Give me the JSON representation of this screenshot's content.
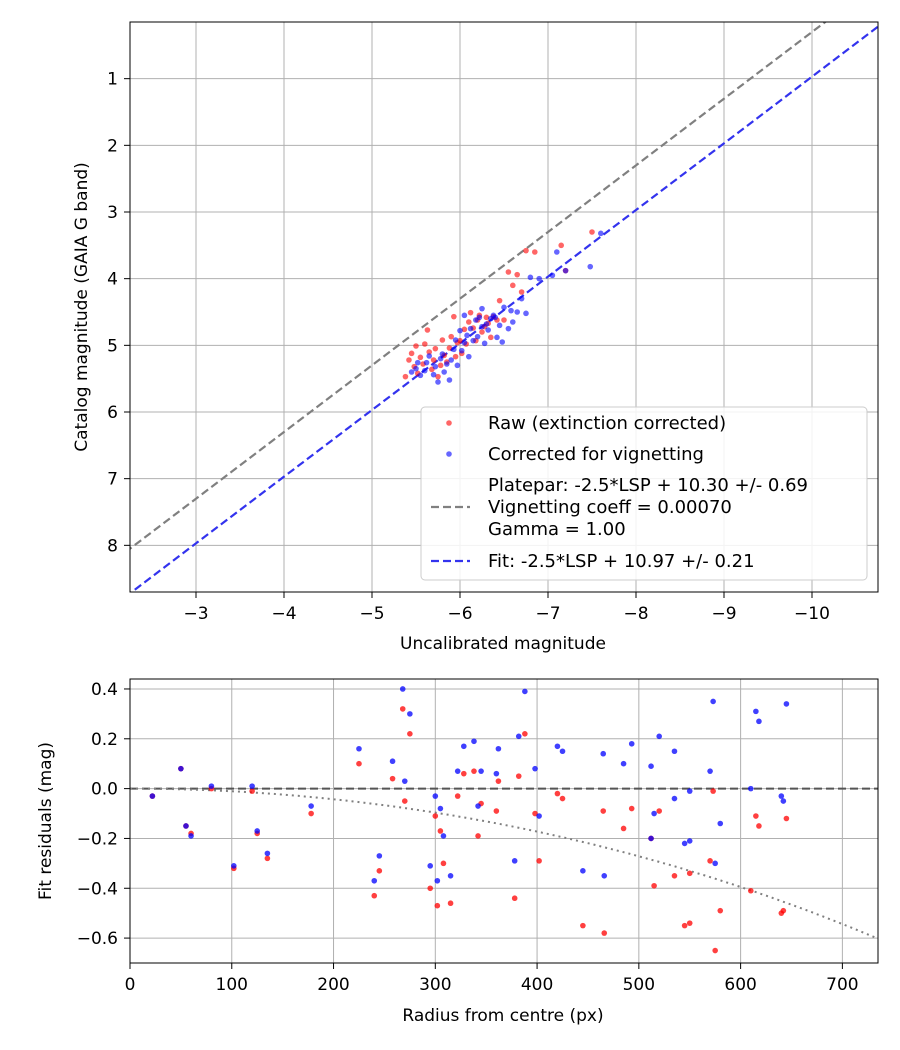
{
  "chart_data": [
    {
      "type": "scatter",
      "xlabel": "Uncalibrated magnitude",
      "ylabel": "Catalog magnitude (GAIA G band)",
      "xlim": [
        -2.25,
        -10.75
      ],
      "ylim": [
        8.7,
        0.15
      ],
      "x_inverted": true,
      "y_inverted": true,
      "xticks": [
        -3,
        -4,
        -5,
        -6,
        -7,
        -8,
        -9,
        -10
      ],
      "xtick_labels": [
        "−3",
        "−4",
        "−5",
        "−6",
        "−7",
        "−8",
        "−9",
        "−10"
      ],
      "yticks": [
        1,
        2,
        3,
        4,
        5,
        6,
        7,
        8
      ],
      "ytick_labels": [
        "1",
        "2",
        "3",
        "4",
        "5",
        "6",
        "7",
        "8"
      ],
      "grid": true,
      "legend_position": "lower-right",
      "legend": [
        {
          "kind": "point",
          "color": "#ff0000",
          "label_lines": [
            "Raw (extinction corrected)"
          ]
        },
        {
          "kind": "point",
          "color": "#0000ff",
          "label_lines": [
            "Corrected for vignetting"
          ]
        },
        {
          "kind": "dashed-line",
          "color": "#808080",
          "label_lines": [
            "Platepar: -2.5*LSP + 10.30 +/- 0.69",
            "Vignetting coeff = 0.00070",
            "Gamma = 1.00"
          ]
        },
        {
          "kind": "dashed-line",
          "color": "#3333ee",
          "label_lines": [
            "Fit: -2.5*LSP + 10.97 +/- 0.21"
          ]
        }
      ],
      "lines": [
        {
          "name": "Platepar",
          "slope": 1,
          "intercept": 10.3,
          "color": "#808080",
          "style": "dashed"
        },
        {
          "name": "Fit",
          "slope": 1,
          "intercept": 10.97,
          "color": "#3333ee",
          "style": "dashed"
        }
      ],
      "series": [
        {
          "name": "Raw (extinction corrected)",
          "color": "#ff0000",
          "points": [
            [
              -5.38,
              5.47
            ],
            [
              -5.42,
              5.22
            ],
            [
              -5.45,
              5.12
            ],
            [
              -5.48,
              5.32
            ],
            [
              -5.5,
              5.01
            ],
            [
              -5.52,
              5.42
            ],
            [
              -5.55,
              5.18
            ],
            [
              -5.58,
              5.28
            ],
            [
              -5.6,
              4.98
            ],
            [
              -5.63,
              4.77
            ],
            [
              -5.65,
              5.1
            ],
            [
              -5.68,
              5.36
            ],
            [
              -5.7,
              5.22
            ],
            [
              -5.72,
              5.05
            ],
            [
              -5.75,
              5.47
            ],
            [
              -5.78,
              5.3
            ],
            [
              -5.8,
              4.92
            ],
            [
              -5.82,
              5.15
            ],
            [
              -5.85,
              5.25
            ],
            [
              -5.88,
              5.04
            ],
            [
              -5.9,
              4.87
            ],
            [
              -5.93,
              4.57
            ],
            [
              -5.95,
              5.17
            ],
            [
              -5.97,
              4.96
            ],
            [
              -6.0,
              4.93
            ],
            [
              -6.02,
              5.12
            ],
            [
              -6.05,
              4.76
            ],
            [
              -6.07,
              4.98
            ],
            [
              -6.1,
              4.65
            ],
            [
              -6.12,
              4.51
            ],
            [
              -6.15,
              4.74
            ],
            [
              -6.18,
              4.93
            ],
            [
              -6.2,
              4.62
            ],
            [
              -6.22,
              4.55
            ],
            [
              -6.25,
              4.8
            ],
            [
              -6.28,
              4.72
            ],
            [
              -6.3,
              4.58
            ],
            [
              -6.32,
              4.67
            ],
            [
              -6.35,
              4.88
            ],
            [
              -6.38,
              4.57
            ],
            [
              -6.42,
              4.62
            ],
            [
              -6.45,
              4.33
            ],
            [
              -6.5,
              4.62
            ],
            [
              -6.55,
              3.9
            ],
            [
              -6.6,
              4.1
            ],
            [
              -6.65,
              3.94
            ],
            [
              -6.7,
              4.2
            ],
            [
              -6.75,
              3.58
            ],
            [
              -6.85,
              3.6
            ],
            [
              -7.15,
              3.5
            ],
            [
              -7.5,
              3.3
            ],
            [
              -7.2,
              3.88
            ]
          ]
        },
        {
          "name": "Corrected for vignetting",
          "color": "#0000ff",
          "points": [
            [
              -5.45,
              5.4
            ],
            [
              -5.5,
              5.35
            ],
            [
              -5.52,
              5.26
            ],
            [
              -5.55,
              5.45
            ],
            [
              -5.6,
              5.38
            ],
            [
              -5.62,
              5.26
            ],
            [
              -5.65,
              5.16
            ],
            [
              -5.7,
              5.44
            ],
            [
              -5.72,
              5.32
            ],
            [
              -5.75,
              5.55
            ],
            [
              -5.78,
              5.2
            ],
            [
              -5.8,
              5.13
            ],
            [
              -5.82,
              5.4
            ],
            [
              -5.85,
              5.28
            ],
            [
              -5.88,
              5.52
            ],
            [
              -5.9,
              5.22
            ],
            [
              -5.93,
              5.06
            ],
            [
              -5.95,
              4.92
            ],
            [
              -5.97,
              5.3
            ],
            [
              -6.0,
              4.78
            ],
            [
              -6.02,
              5.08
            ],
            [
              -6.05,
              4.96
            ],
            [
              -6.08,
              4.85
            ],
            [
              -6.1,
              5.17
            ],
            [
              -6.12,
              4.75
            ],
            [
              -6.15,
              4.93
            ],
            [
              -6.18,
              4.62
            ],
            [
              -6.2,
              4.87
            ],
            [
              -6.22,
              4.58
            ],
            [
              -6.25,
              4.72
            ],
            [
              -6.28,
              4.97
            ],
            [
              -6.3,
              4.68
            ],
            [
              -6.32,
              4.77
            ],
            [
              -6.35,
              4.6
            ],
            [
              -6.38,
              4.55
            ],
            [
              -6.42,
              4.88
            ],
            [
              -6.45,
              4.7
            ],
            [
              -6.48,
              4.95
            ],
            [
              -6.5,
              4.43
            ],
            [
              -6.55,
              4.75
            ],
            [
              -6.58,
              4.48
            ],
            [
              -6.6,
              4.65
            ],
            [
              -6.65,
              4.5
            ],
            [
              -6.7,
              4.3
            ],
            [
              -6.75,
              4.52
            ],
            [
              -6.8,
              3.98
            ],
            [
              -6.9,
              4.0
            ],
            [
              -7.05,
              3.95
            ],
            [
              -7.1,
              3.6
            ],
            [
              -7.2,
              3.88
            ],
            [
              -7.48,
              3.82
            ],
            [
              -7.6,
              3.32
            ],
            [
              -6.4,
              4.58
            ],
            [
              -6.25,
              4.45
            ],
            [
              -6.05,
              4.55
            ]
          ]
        }
      ]
    },
    {
      "type": "scatter",
      "xlabel": "Radius from centre (px)",
      "ylabel": "Fit residuals (mag)",
      "xlim": [
        0,
        735
      ],
      "ylim": [
        -0.7,
        0.44
      ],
      "xticks": [
        0,
        100,
        200,
        300,
        400,
        500,
        600,
        700
      ],
      "xtick_labels": [
        "0",
        "100",
        "200",
        "300",
        "400",
        "500",
        "600",
        "700"
      ],
      "yticks": [
        0.4,
        0.2,
        0.0,
        -0.2,
        -0.4,
        -0.6
      ],
      "ytick_labels": [
        "0.4",
        "0.2",
        "0.0",
        "−0.2",
        "−0.4",
        "−0.6"
      ],
      "grid": true,
      "zero_line": {
        "y": 0,
        "color": "#555555",
        "style": "dashed"
      },
      "vignetting_curve": {
        "coeff": 0.0007,
        "color": "#808080",
        "style": "dotted"
      },
      "series": [
        {
          "name": "Raw (extinction corrected)",
          "color": "#ff0000",
          "points": [
            [
              22,
              -0.03
            ],
            [
              50,
              0.08
            ],
            [
              55,
              -0.15
            ],
            [
              60,
              -0.18
            ],
            [
              80,
              0.0
            ],
            [
              102,
              -0.32
            ],
            [
              120,
              -0.01
            ],
            [
              125,
              -0.18
            ],
            [
              135,
              -0.28
            ],
            [
              178,
              -0.1
            ],
            [
              225,
              0.1
            ],
            [
              240,
              -0.43
            ],
            [
              245,
              -0.33
            ],
            [
              258,
              0.04
            ],
            [
              268,
              0.32
            ],
            [
              270,
              -0.05
            ],
            [
              275,
              0.22
            ],
            [
              295,
              -0.4
            ],
            [
              300,
              -0.11
            ],
            [
              302,
              -0.47
            ],
            [
              305,
              -0.17
            ],
            [
              308,
              -0.3
            ],
            [
              315,
              -0.46
            ],
            [
              322,
              -0.03
            ],
            [
              328,
              0.06
            ],
            [
              338,
              0.07
            ],
            [
              342,
              -0.19
            ],
            [
              345,
              -0.06
            ],
            [
              360,
              -0.09
            ],
            [
              362,
              0.03
            ],
            [
              378,
              -0.44
            ],
            [
              382,
              0.05
            ],
            [
              388,
              0.22
            ],
            [
              398,
              -0.1
            ],
            [
              402,
              -0.29
            ],
            [
              420,
              -0.02
            ],
            [
              425,
              -0.04
            ],
            [
              445,
              -0.55
            ],
            [
              465,
              -0.09
            ],
            [
              466,
              -0.58
            ],
            [
              485,
              -0.16
            ],
            [
              493,
              -0.08
            ],
            [
              512,
              -0.2
            ],
            [
              515,
              -0.39
            ],
            [
              520,
              -0.09
            ],
            [
              535,
              -0.35
            ],
            [
              545,
              -0.55
            ],
            [
              550,
              -0.54
            ],
            [
              550,
              -0.34
            ],
            [
              570,
              -0.29
            ],
            [
              573,
              -0.01
            ],
            [
              575,
              -0.65
            ],
            [
              580,
              -0.49
            ],
            [
              610,
              -0.41
            ],
            [
              615,
              -0.11
            ],
            [
              618,
              -0.15
            ],
            [
              640,
              -0.5
            ],
            [
              642,
              -0.49
            ],
            [
              645,
              -0.12
            ]
          ]
        },
        {
          "name": "Corrected for vignetting",
          "color": "#0000ff",
          "points": [
            [
              22,
              -0.03
            ],
            [
              50,
              0.08
            ],
            [
              55,
              -0.15
            ],
            [
              60,
              -0.19
            ],
            [
              80,
              0.01
            ],
            [
              102,
              -0.31
            ],
            [
              120,
              0.01
            ],
            [
              125,
              -0.17
            ],
            [
              135,
              -0.26
            ],
            [
              178,
              -0.07
            ],
            [
              225,
              0.16
            ],
            [
              240,
              -0.37
            ],
            [
              245,
              -0.27
            ],
            [
              258,
              0.11
            ],
            [
              268,
              0.4
            ],
            [
              270,
              0.03
            ],
            [
              275,
              0.3
            ],
            [
              295,
              -0.31
            ],
            [
              300,
              -0.03
            ],
            [
              302,
              -0.37
            ],
            [
              305,
              -0.08
            ],
            [
              308,
              -0.19
            ],
            [
              315,
              -0.35
            ],
            [
              322,
              0.07
            ],
            [
              328,
              0.17
            ],
            [
              338,
              0.19
            ],
            [
              342,
              -0.07
            ],
            [
              345,
              0.07
            ],
            [
              360,
              0.06
            ],
            [
              362,
              0.16
            ],
            [
              378,
              -0.29
            ],
            [
              382,
              0.21
            ],
            [
              388,
              0.39
            ],
            [
              398,
              0.08
            ],
            [
              402,
              -0.11
            ],
            [
              420,
              0.17
            ],
            [
              425,
              0.15
            ],
            [
              445,
              -0.33
            ],
            [
              465,
              0.14
            ],
            [
              466,
              -0.35
            ],
            [
              485,
              0.1
            ],
            [
              493,
              0.18
            ],
            [
              512,
              0.09
            ],
            [
              515,
              -0.1
            ],
            [
              520,
              0.21
            ],
            [
              535,
              0.15
            ],
            [
              545,
              -0.22
            ],
            [
              550,
              -0.21
            ],
            [
              550,
              -0.01
            ],
            [
              570,
              0.07
            ],
            [
              573,
              0.35
            ],
            [
              575,
              -0.3
            ],
            [
              580,
              -0.14
            ],
            [
              610,
              0.0
            ],
            [
              615,
              0.31
            ],
            [
              618,
              0.27
            ],
            [
              640,
              -0.03
            ],
            [
              642,
              -0.05
            ],
            [
              645,
              0.34
            ],
            [
              535,
              -0.04
            ],
            [
              512,
              -0.2
            ]
          ]
        }
      ]
    }
  ]
}
